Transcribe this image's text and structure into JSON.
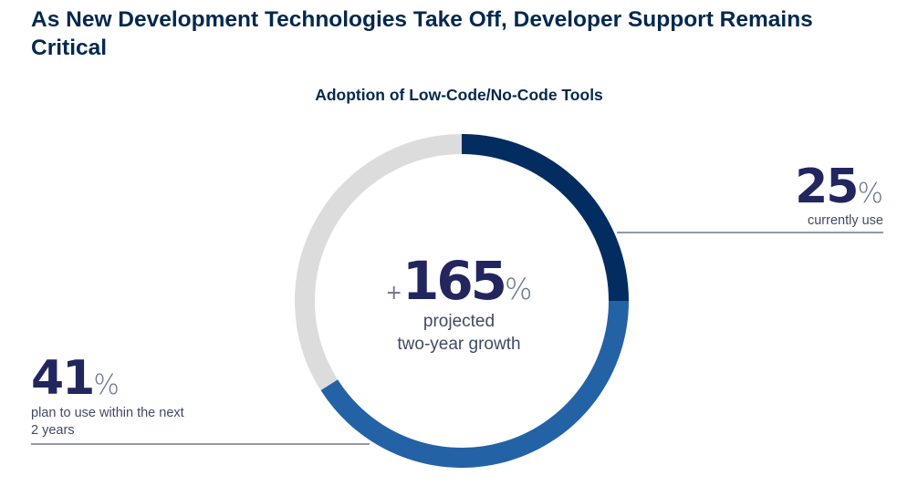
{
  "page": {
    "title": "As New Development Technologies Take Off, Developer Support Remains Critical"
  },
  "chart_data": {
    "type": "pie",
    "title": "Adoption of Low-Code/No-Code Tools",
    "variant": "donut",
    "slices": [
      {
        "label": "currently use",
        "value": 25,
        "color": "#032d60"
      },
      {
        "label": "plan to use within the next 2 years",
        "value": 41,
        "color": "#2462a6"
      },
      {
        "label": "",
        "value": 34,
        "color": "#dcdcdc"
      }
    ],
    "center": {
      "prefix": "+",
      "value": "165",
      "unit": "%",
      "caption_line1": "projected",
      "caption_line2": "two-year growth"
    },
    "callouts": {
      "current": {
        "value": "25",
        "unit": "%",
        "caption": "currently use"
      },
      "plan": {
        "value": "41",
        "unit": "%",
        "caption": "plan to use within the next 2 years"
      }
    },
    "colors": {
      "callout_line": "#505a76"
    }
  }
}
